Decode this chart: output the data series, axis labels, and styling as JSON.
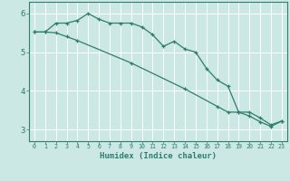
{
  "xlabel": "Humidex (Indice chaleur)",
  "bg_color": "#cce8e4",
  "grid_color": "#ffffff",
  "line_color": "#2e7d6e",
  "xlim": [
    -0.5,
    23.5
  ],
  "ylim": [
    2.7,
    6.3
  ],
  "yticks": [
    3,
    4,
    5,
    6
  ],
  "xticks": [
    0,
    1,
    2,
    3,
    4,
    5,
    6,
    7,
    8,
    9,
    10,
    11,
    12,
    13,
    14,
    15,
    16,
    17,
    18,
    19,
    20,
    21,
    22,
    23
  ],
  "line1_x": [
    0,
    1,
    2,
    3,
    4,
    5,
    6,
    7,
    8,
    9,
    10,
    11,
    12,
    13,
    14,
    15,
    16,
    17,
    18,
    19,
    20,
    21,
    22,
    23
  ],
  "line1_y": [
    5.52,
    5.52,
    5.75,
    5.75,
    5.82,
    6.0,
    5.85,
    5.75,
    5.75,
    5.75,
    5.65,
    5.45,
    5.15,
    5.28,
    5.08,
    5.0,
    4.58,
    4.28,
    4.12,
    3.45,
    3.45,
    3.3,
    3.12,
    3.22
  ],
  "line2_x": [
    0,
    1,
    2,
    3,
    4,
    9,
    14,
    17,
    18,
    19,
    20,
    21,
    22,
    23
  ],
  "line2_y": [
    5.52,
    5.52,
    5.5,
    5.4,
    5.3,
    4.72,
    4.05,
    3.6,
    3.45,
    3.45,
    3.35,
    3.2,
    3.08,
    3.22
  ]
}
